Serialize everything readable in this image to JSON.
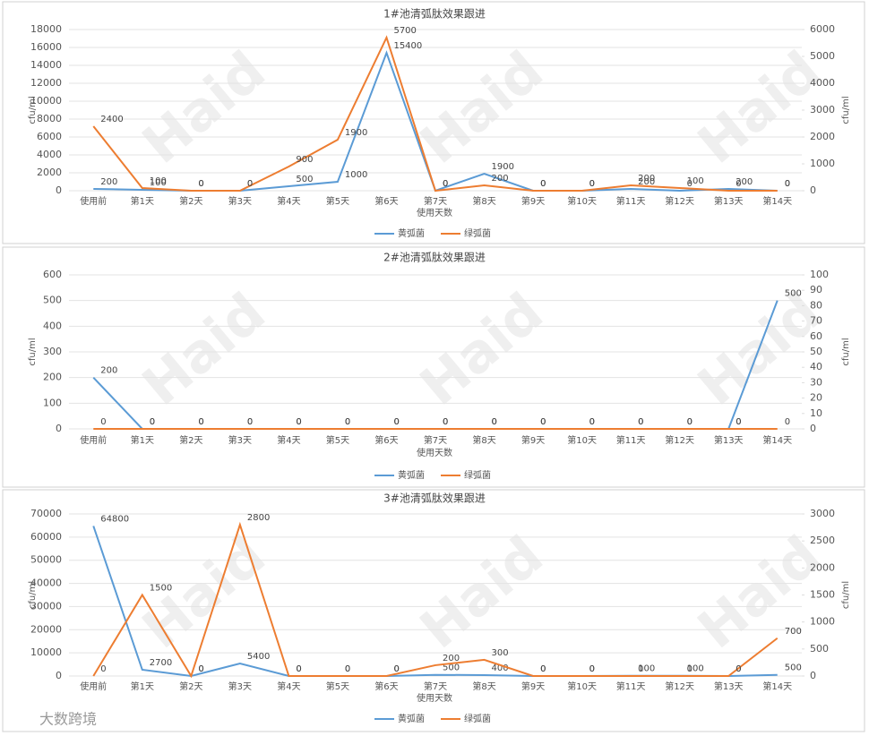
{
  "chart_data": [
    {
      "type": "line",
      "title": "1#池清弧肽效果跟进",
      "x_label": "使用天数",
      "y_label": "cfu/ml",
      "y2_label": "cfu/ml",
      "categories": [
        "使用前",
        "第1天",
        "第2天",
        "第3天",
        "第4天",
        "第5天",
        "第6天",
        "第7天",
        "第8天",
        "第9天",
        "第10天",
        "第11天",
        "第12天",
        "第13天",
        "第14天"
      ],
      "series": [
        {
          "name": "黄弧菌",
          "color": "#5b9bd5",
          "values": [
            200,
            100,
            0,
            0,
            500,
            1000,
            15400,
            0,
            1900,
            0,
            0,
            200,
            0,
            200,
            0
          ]
        },
        {
          "name": "绿弧菌",
          "color": "#ed7d31",
          "axis": "y2",
          "values": [
            2400,
            100,
            0,
            0,
            900,
            1900,
            5700,
            0,
            200,
            0,
            0,
            200,
            100,
            0,
            0
          ]
        }
      ],
      "ylim": [
        0,
        18000
      ],
      "yticks": [
        0,
        2000,
        4000,
        6000,
        8000,
        10000,
        12000,
        14000,
        16000,
        18000
      ],
      "y2lim": [
        0,
        6000
      ],
      "y2ticks": [
        0,
        1000,
        2000,
        3000,
        4000,
        5000,
        6000
      ],
      "grid": true,
      "legend": "bottom"
    },
    {
      "type": "line",
      "title": "2#池清弧肽效果跟进",
      "x_label": "使用天数",
      "y_label": "cfu/ml",
      "y2_label": "cfu/ml",
      "categories": [
        "使用前",
        "第1天",
        "第2天",
        "第3天",
        "第4天",
        "第5天",
        "第6天",
        "第7天",
        "第8天",
        "第9天",
        "第10天",
        "第11天",
        "第12天",
        "第13天",
        "第14天"
      ],
      "series": [
        {
          "name": "黄弧菌",
          "color": "#5b9bd5",
          "values": [
            200,
            0,
            0,
            0,
            0,
            0,
            0,
            0,
            0,
            0,
            0,
            0,
            0,
            0,
            500
          ]
        },
        {
          "name": "绿弧菌",
          "color": "#ed7d31",
          "axis": "y2",
          "values": [
            0,
            0,
            0,
            0,
            0,
            0,
            0,
            0,
            0,
            0,
            0,
            0,
            0,
            0,
            0
          ]
        }
      ],
      "ylim": [
        0,
        600
      ],
      "yticks": [
        0,
        100,
        200,
        300,
        400,
        500,
        600
      ],
      "y2lim": [
        0,
        100
      ],
      "y2ticks": [
        0,
        10,
        20,
        30,
        40,
        50,
        60,
        70,
        80,
        90,
        100
      ],
      "grid": true,
      "legend": "bottom"
    },
    {
      "type": "line",
      "title": "3#池清弧肽效果跟进",
      "x_label": "使用天数",
      "y_label": "cfu/ml",
      "y2_label": "cfu/ml",
      "categories": [
        "使用前",
        "第1天",
        "第2天",
        "第3天",
        "第4天",
        "第5天",
        "第6天",
        "第7天",
        "第8天",
        "第9天",
        "第10天",
        "第11天",
        "第12天",
        "第13天",
        "第14天"
      ],
      "series": [
        {
          "name": "黄弧菌",
          "color": "#5b9bd5",
          "values": [
            64800,
            2700,
            0,
            5400,
            0,
            0,
            0,
            500,
            400,
            0,
            0,
            100,
            100,
            0,
            500
          ]
        },
        {
          "name": "绿弧菌",
          "color": "#ed7d31",
          "axis": "y2",
          "values": [
            0,
            1500,
            0,
            2800,
            0,
            0,
            0,
            200,
            300,
            0,
            0,
            0,
            0,
            0,
            700
          ]
        }
      ],
      "ylim": [
        0,
        70000
      ],
      "yticks": [
        0,
        10000,
        20000,
        30000,
        40000,
        50000,
        60000,
        70000
      ],
      "y2lim": [
        0,
        3000
      ],
      "y2ticks": [
        0,
        500,
        1000,
        1500,
        2000,
        2500,
        3000
      ],
      "grid": true,
      "legend": "bottom"
    }
  ],
  "watermark": "Haid",
  "source": "大数跨境"
}
